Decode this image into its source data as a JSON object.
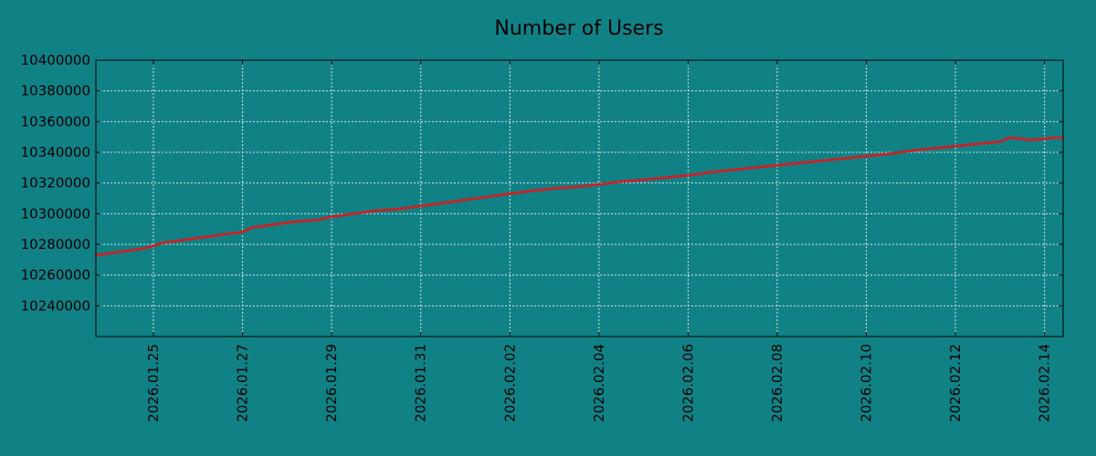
{
  "chart_data": {
    "type": "line",
    "title": "Number of Users",
    "xlabel": "",
    "ylabel": "",
    "grid": true,
    "colors": {
      "background": "#108286",
      "line": "#c0262b",
      "axis": "#000000",
      "grid": "#d8e8e8",
      "text": "#000000"
    },
    "xlim": [
      "2026-01-23T17:00",
      "2026-02-14T10:00"
    ],
    "ylim": [
      10220000,
      10400000
    ],
    "x_ticks": [
      "2026-01-25",
      "2026-01-27",
      "2026-01-29",
      "2026-01-31",
      "2026-02-02",
      "2026-02-04",
      "2026-02-06",
      "2026-02-08",
      "2026-02-10",
      "2026-02-12",
      "2026-02-14"
    ],
    "x_tick_labels": [
      "2026.01.25",
      "2026.01.27",
      "2026.01.29",
      "2026.01.31",
      "2026.02.02",
      "2026.02.04",
      "2026.02.06",
      "2026.02.08",
      "2026.02.10",
      "2026.02.12",
      "2026.02.14"
    ],
    "y_ticks": [
      10240000,
      10260000,
      10280000,
      10300000,
      10320000,
      10340000,
      10360000,
      10380000,
      10400000
    ],
    "y_tick_labels": [
      "10240000",
      "10260000",
      "10280000",
      "10300000",
      "10320000",
      "10340000",
      "10360000",
      "10380000",
      "10400000"
    ],
    "series": [
      {
        "x": [
          "2026-01-23T17:00",
          "2026-01-24T05:00",
          "2026-01-24T17:00",
          "2026-01-25T00:00",
          "2026-01-25T05:00",
          "2026-01-25T17:00",
          "2026-01-26T05:00",
          "2026-01-26T17:00",
          "2026-01-27T00:00",
          "2026-01-27T05:00",
          "2026-01-27T17:00",
          "2026-01-28T05:00",
          "2026-01-28T17:00",
          "2026-01-29T00:00",
          "2026-01-29T12:00",
          "2026-01-30T00:00",
          "2026-01-30T12:00",
          "2026-01-31T00:00",
          "2026-01-31T12:00",
          "2026-02-01T00:00",
          "2026-02-01T12:00",
          "2026-02-02T00:00",
          "2026-02-02T12:00",
          "2026-02-03T00:00",
          "2026-02-03T12:00",
          "2026-02-04T00:00",
          "2026-02-04T12:00",
          "2026-02-05T00:00",
          "2026-02-05T12:00",
          "2026-02-06T00:00",
          "2026-02-06T12:00",
          "2026-02-07T00:00",
          "2026-02-07T12:00",
          "2026-02-08T00:00",
          "2026-02-08T12:00",
          "2026-02-09T00:00",
          "2026-02-09T12:00",
          "2026-02-10T00:00",
          "2026-02-10T12:00",
          "2026-02-11T00:00",
          "2026-02-11T12:00",
          "2026-02-12T00:00",
          "2026-02-12T12:00",
          "2026-02-13T00:00",
          "2026-02-13T05:00",
          "2026-02-13T10:00",
          "2026-02-13T16:00",
          "2026-02-13T22:00",
          "2026-02-14T05:00",
          "2026-02-14T10:00"
        ],
        "values": [
          10273000,
          10275000,
          10277000,
          10279000,
          10281000,
          10283000,
          10285000,
          10287000,
          10288000,
          10291000,
          10293000,
          10295000,
          10296000,
          10298000,
          10300000,
          10302000,
          10303000,
          10305000,
          10307000,
          10309000,
          10311000,
          10313000,
          10315000,
          10316500,
          10317500,
          10319000,
          10321000,
          10322000,
          10323500,
          10325000,
          10327000,
          10328500,
          10330000,
          10331500,
          10333000,
          10334500,
          10336000,
          10337500,
          10339000,
          10341000,
          10342500,
          10344000,
          10345500,
          10347000,
          10349500,
          10349000,
          10348000,
          10348500,
          10349500,
          10349500
        ]
      }
    ]
  }
}
